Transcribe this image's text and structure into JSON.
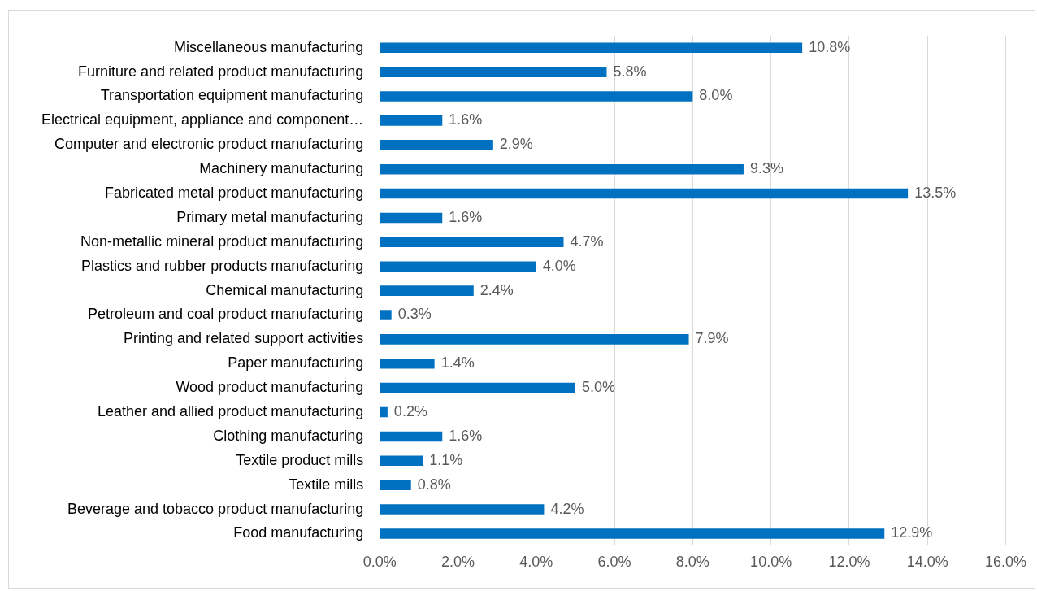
{
  "chart_data": {
    "type": "bar",
    "orientation": "horizontal",
    "categories": [
      "Miscellaneous manufacturing",
      "Furniture and related product manufacturing",
      "Transportation equipment manufacturing",
      "Electrical equipment, appliance and component…",
      "Computer and electronic product manufacturing",
      "Machinery manufacturing",
      "Fabricated metal product manufacturing",
      "Primary metal manufacturing",
      "Non-metallic mineral product manufacturing",
      "Plastics and rubber products manufacturing",
      "Chemical manufacturing",
      "Petroleum and coal product manufacturing",
      "Printing and related support activities",
      "Paper manufacturing",
      "Wood product manufacturing",
      "Leather and allied product manufacturing",
      "Clothing manufacturing",
      "Textile product mills",
      "Textile mills",
      "Beverage and tobacco product manufacturing",
      "Food manufacturing"
    ],
    "values": [
      10.8,
      5.8,
      8.0,
      1.6,
      2.9,
      9.3,
      13.5,
      1.6,
      4.7,
      4.0,
      2.4,
      0.3,
      7.9,
      1.4,
      5.0,
      0.2,
      1.6,
      1.1,
      0.8,
      4.2,
      12.9
    ],
    "value_labels": [
      "10.8%",
      "5.8%",
      "8.0%",
      "1.6%",
      "2.9%",
      "9.3%",
      "13.5%",
      "1.6%",
      "4.7%",
      "4.0%",
      "2.4%",
      "0.3%",
      "7.9%",
      "1.4%",
      "5.0%",
      "0.2%",
      "1.6%",
      "1.1%",
      "0.8%",
      "4.2%",
      "12.9%"
    ],
    "color": "#0070c0",
    "xlim": [
      0,
      16
    ],
    "xticks": [
      {
        "value": 0,
        "label": "0.0%"
      },
      {
        "value": 2,
        "label": "2.0%"
      },
      {
        "value": 4,
        "label": "4.0%"
      },
      {
        "value": 6,
        "label": "6.0%"
      },
      {
        "value": 8,
        "label": "8.0%"
      },
      {
        "value": 10,
        "label": "10.0%"
      },
      {
        "value": 12,
        "label": "12.0%"
      },
      {
        "value": 14,
        "label": "14.0%"
      },
      {
        "value": 16,
        "label": "16.0%"
      }
    ],
    "grid": "x",
    "legend": false
  }
}
